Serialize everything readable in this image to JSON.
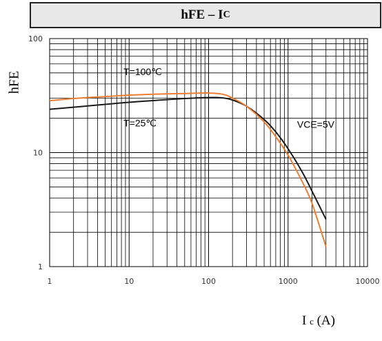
{
  "chart_data": {
    "type": "line",
    "title": "hFE – I",
    "title_subscript": "C",
    "ylabel": "hFE",
    "xlabel": "I",
    "xlabel_subscript": "c",
    "xlabel_unit": "(A)",
    "x_scale": "log",
    "y_scale": "log",
    "xlim": [
      1,
      10000
    ],
    "ylim": [
      1,
      100
    ],
    "x_ticks": [
      1,
      10,
      100,
      1000,
      10000
    ],
    "x_tick_labels": [
      "1",
      "10",
      "100",
      "1000",
      "10000"
    ],
    "y_ticks": [
      1,
      10,
      100
    ],
    "y_tick_labels": [
      "1",
      "10",
      "100"
    ],
    "grid": true,
    "series": [
      {
        "name": "T=25℃",
        "color": "#1a1a1a",
        "x": [
          1,
          2,
          5,
          10,
          20,
          50,
          100,
          150,
          200,
          300,
          500,
          700,
          1000,
          1500,
          2000,
          3000
        ],
        "y": [
          24,
          25,
          26.5,
          27.6,
          28.6,
          29.8,
          30.4,
          30.2,
          28.9,
          25.5,
          19.5,
          15.2,
          10.8,
          6.8,
          4.6,
          2.6
        ]
      },
      {
        "name": "T=100℃",
        "color": "#ed7d31",
        "x": [
          1,
          2,
          5,
          10,
          20,
          50,
          100,
          150,
          200,
          300,
          500,
          700,
          1000,
          1500,
          2000,
          3000
        ],
        "y": [
          28.5,
          29.8,
          31,
          31.9,
          32.5,
          33,
          33.3,
          32.5,
          30.1,
          25.5,
          18.6,
          13.8,
          9.5,
          5.6,
          3.6,
          1.5
        ]
      }
    ],
    "annotations": [
      {
        "text": "T=100℃",
        "x": 8.5,
        "y": 48
      },
      {
        "text": "T=25℃",
        "x": 8.5,
        "y": 17
      },
      {
        "text": "VCE=5V",
        "x": 1300,
        "y": 16.5
      }
    ]
  }
}
